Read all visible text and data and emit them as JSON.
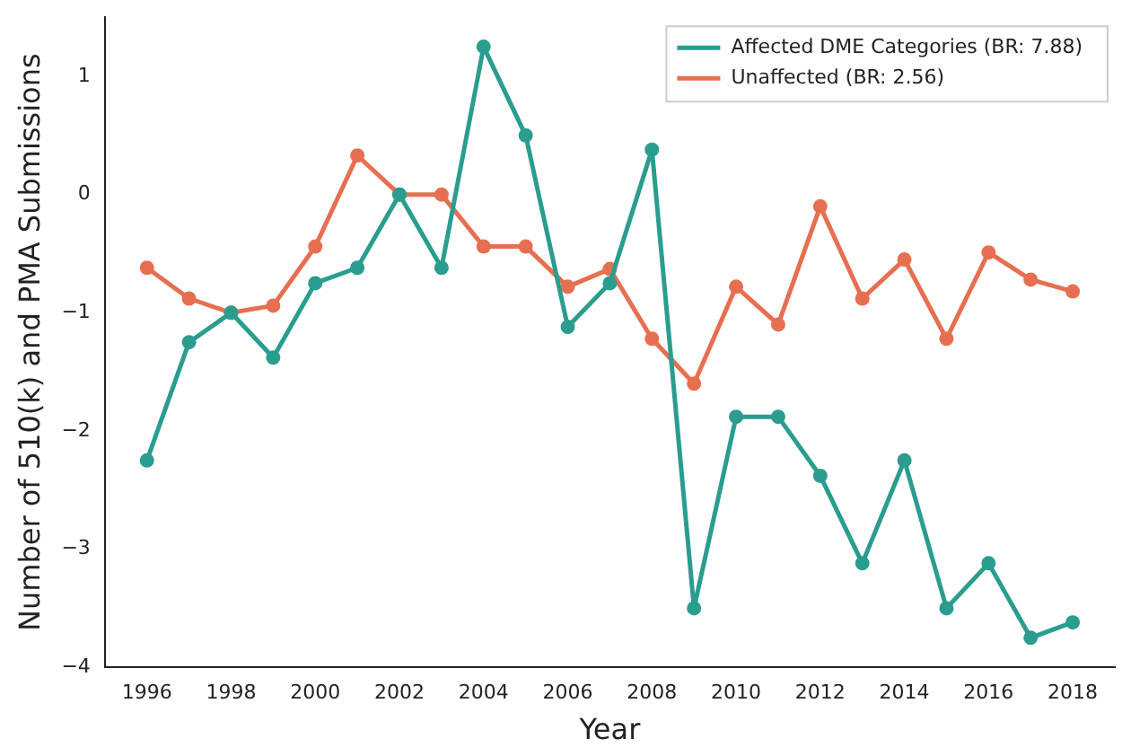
{
  "chart_data": {
    "type": "line",
    "xlabel": "Year",
    "ylabel": "Number of 510(k) and PMA Submissions",
    "x": [
      1996,
      1997,
      1998,
      1999,
      2000,
      2001,
      2002,
      2003,
      2004,
      2005,
      2006,
      2007,
      2008,
      2009,
      2010,
      2011,
      2012,
      2013,
      2014,
      2015,
      2016,
      2017,
      2018
    ],
    "series": [
      {
        "name": "Affected DME Categories (BR: 7.88)",
        "color": "#2a9d8f",
        "values": [
          -2.25,
          -1.25,
          -1,
          -1.38,
          -0.75,
          -0.62,
          0,
          -0.62,
          1.25,
          0.5,
          -1.12,
          -0.75,
          0.38,
          -3.5,
          -1.88,
          -1.88,
          -2.38,
          -3.12,
          -2.25,
          -3.5,
          -3.12,
          -3.75,
          -3.62
        ]
      },
      {
        "name": "Unaffected (BR: 2.56)",
        "color": "#e76f51",
        "values": [
          -0.62,
          -0.88,
          -1,
          -0.94,
          -0.44,
          0.33,
          0,
          0,
          -0.44,
          -0.44,
          -0.78,
          -0.63,
          -1.22,
          -1.6,
          -0.78,
          -1.1,
          -0.1,
          -0.88,
          -0.55,
          -1.22,
          -0.49,
          -0.72,
          -0.82
        ]
      }
    ],
    "xlim": [
      1995,
      2019
    ],
    "xticks": [
      1996,
      1998,
      2000,
      2002,
      2004,
      2006,
      2008,
      2010,
      2012,
      2014,
      2016,
      2018
    ],
    "ylim": [
      -4,
      1.5
    ],
    "yticks": [
      -4,
      -3,
      -2,
      -1,
      0,
      1
    ],
    "grid": false,
    "legend": "top right",
    "marker": "circle",
    "line_style": "solid"
  }
}
